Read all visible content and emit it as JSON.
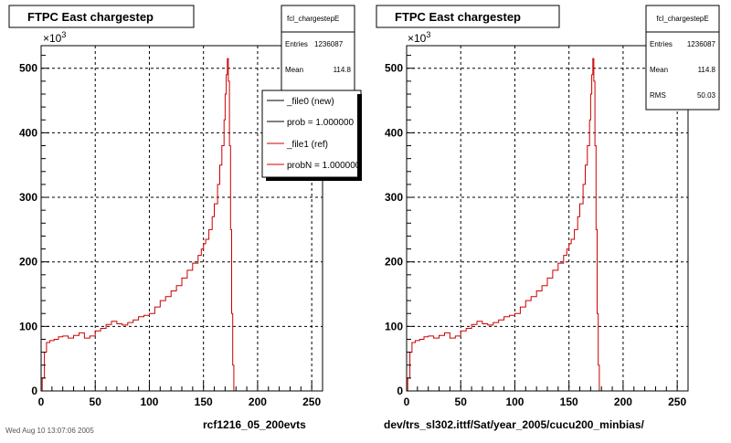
{
  "panels": [
    {
      "title": "FTPC East chargestep",
      "exponent": "×10",
      "exponent_sup": "3",
      "stats": {
        "name": "fcl_chargestepE",
        "rows": [
          {
            "label": "Entries",
            "value": "1236087"
          },
          {
            "label": "Mean",
            "value": "114.8"
          }
        ]
      },
      "legend": [
        {
          "label": "_file0 (new)",
          "color": "#000000"
        },
        {
          "label": "prob = 1.000000",
          "color": "#000000"
        },
        {
          "label": "_file1 (ref)",
          "color": "#cc0000"
        },
        {
          "label": "probN = 1.000000",
          "color": "#cc0000"
        }
      ],
      "footer": "rcf1216_05_200evts",
      "corner_text": "Wed Aug 10 13:07:06 2005"
    },
    {
      "title": "FTPC East chargestep",
      "exponent": "×10",
      "exponent_sup": "3",
      "stats": {
        "name": "fcl_chargestepE",
        "rows": [
          {
            "label": "Entries",
            "value": "1236087"
          },
          {
            "label": "Mean",
            "value": "114.8"
          },
          {
            "label": "RMS",
            "value": "50.03"
          }
        ]
      },
      "legend": [],
      "footer": "dev/trs_sl302.ittf/Sat/year_2005/cucu200_minbias/",
      "corner_text": ""
    }
  ],
  "chart_data": [
    {
      "type": "line",
      "title": "FTPC East chargestep",
      "xlabel": "",
      "ylabel": "",
      "xlim": [
        0,
        260
      ],
      "ylim": [
        0,
        535
      ],
      "y_units": "×10^3",
      "x_ticks": [
        0,
        50,
        100,
        150,
        200,
        250
      ],
      "y_ticks": [
        0,
        100,
        200,
        300,
        400,
        500
      ],
      "grid": true,
      "legend_position": "top-right",
      "series": [
        {
          "name": "_file1 (ref)",
          "color": "#cc0000",
          "x": [
            0,
            1,
            3,
            5,
            8,
            12,
            16,
            20,
            25,
            30,
            35,
            40,
            45,
            50,
            55,
            60,
            65,
            70,
            75,
            80,
            85,
            90,
            95,
            100,
            105,
            110,
            115,
            120,
            125,
            130,
            135,
            140,
            145,
            148,
            150,
            152,
            155,
            158,
            160,
            163,
            165,
            167,
            169,
            170,
            171,
            172,
            173,
            174,
            175,
            176,
            177,
            178,
            180,
            185,
            200,
            260
          ],
          "y": [
            0,
            20,
            60,
            75,
            78,
            80,
            84,
            85,
            82,
            86,
            90,
            82,
            85,
            93,
            97,
            103,
            108,
            104,
            102,
            106,
            110,
            115,
            117,
            120,
            130,
            140,
            146,
            155,
            163,
            175,
            187,
            198,
            210,
            220,
            228,
            235,
            250,
            270,
            290,
            320,
            350,
            380,
            420,
            460,
            490,
            515,
            480,
            380,
            250,
            120,
            40,
            0,
            0,
            0,
            0,
            0
          ]
        }
      ]
    },
    {
      "type": "line",
      "title": "FTPC East chargestep",
      "xlabel": "",
      "ylabel": "",
      "xlim": [
        0,
        260
      ],
      "ylim": [
        0,
        535
      ],
      "y_units": "×10^3",
      "x_ticks": [
        0,
        50,
        100,
        150,
        200,
        250
      ],
      "y_ticks": [
        0,
        100,
        200,
        300,
        400,
        500
      ],
      "grid": true,
      "legend_position": "none",
      "series": [
        {
          "name": "fcl_chargestepE",
          "color": "#cc0000",
          "x": [
            0,
            1,
            3,
            5,
            8,
            12,
            16,
            20,
            25,
            30,
            35,
            40,
            45,
            50,
            55,
            60,
            65,
            70,
            75,
            80,
            85,
            90,
            95,
            100,
            105,
            110,
            115,
            120,
            125,
            130,
            135,
            140,
            145,
            148,
            150,
            152,
            155,
            158,
            160,
            163,
            165,
            167,
            169,
            170,
            171,
            172,
            173,
            174,
            175,
            176,
            177,
            178,
            180,
            185,
            200,
            260
          ],
          "y": [
            0,
            20,
            60,
            75,
            78,
            80,
            84,
            85,
            82,
            86,
            90,
            82,
            85,
            93,
            97,
            103,
            108,
            104,
            102,
            106,
            110,
            115,
            117,
            120,
            130,
            140,
            146,
            155,
            163,
            175,
            187,
            198,
            210,
            220,
            228,
            235,
            250,
            270,
            290,
            320,
            350,
            380,
            420,
            460,
            490,
            515,
            480,
            380,
            250,
            120,
            40,
            0,
            0,
            0,
            0,
            0
          ]
        }
      ]
    }
  ]
}
